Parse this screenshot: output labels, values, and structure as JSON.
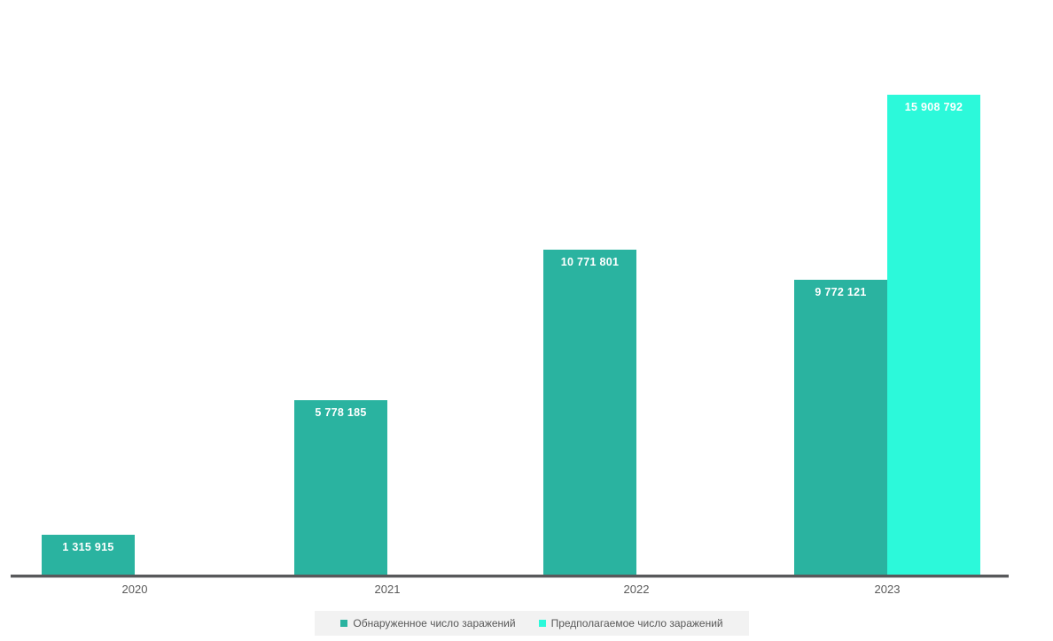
{
  "chart_data": {
    "type": "bar",
    "title": "",
    "xlabel": "",
    "ylabel": "",
    "categories": [
      "2020",
      "2021",
      "2022",
      "2023"
    ],
    "series": [
      {
        "name": "Обнаруженное число заражений",
        "color": "#2ab3a0",
        "values": [
          1315915,
          5778185,
          10771801,
          9772121
        ],
        "value_labels": [
          "1 315 915",
          "5 778 185",
          "10 771 801",
          "9 772 121"
        ]
      },
      {
        "name": "Предполагаемое число заражений",
        "color": "#2cf9da",
        "values": [
          null,
          null,
          null,
          15908792
        ],
        "value_labels": [
          null,
          null,
          null,
          "15 908 792"
        ]
      }
    ],
    "ylim": [
      0,
      16000000
    ],
    "grid": false,
    "legend_position": "bottom",
    "value_label_color": "#ffffff",
    "axis_color": "#58595b",
    "tick_label_color": "#595959",
    "legend_background": "#f2f2f2"
  }
}
